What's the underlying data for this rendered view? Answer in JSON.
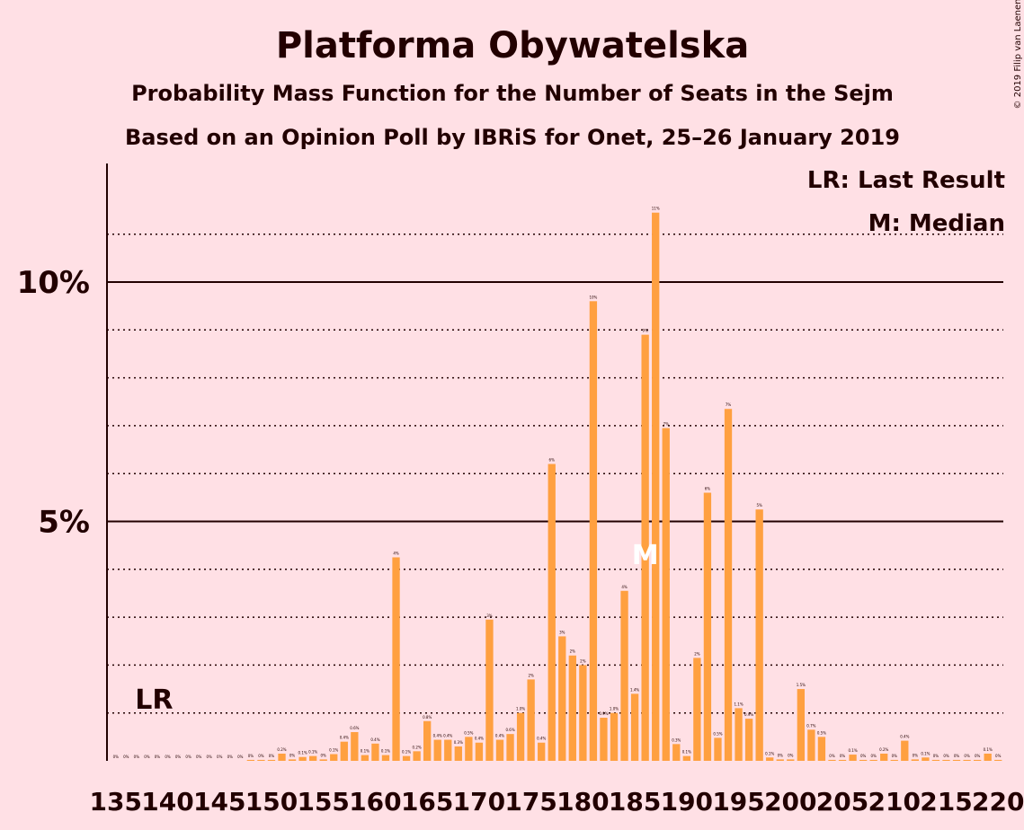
{
  "chart_data": {
    "type": "bar",
    "title": "Platforma Obywatelska",
    "subtitle": "Probability Mass Function for the Number of Seats in the Sejm",
    "subtitle2": "Based on an Opinion Poll by IBRiS for Onet, 25–26 January 2019",
    "copyright": "© 2019 Filip van Laenen",
    "legend": {
      "lr": "LR: Last Result",
      "median": "M: Median",
      "placement": "top-right"
    },
    "markers": {
      "last_result_label": "LR",
      "last_result_seat": 138,
      "median_label": "M",
      "median_seat": 186
    },
    "xlim": [
      135,
      220
    ],
    "x_tick_values": [
      135,
      140,
      145,
      150,
      155,
      160,
      165,
      170,
      175,
      180,
      185,
      190,
      195,
      200,
      205,
      210,
      215,
      220
    ],
    "x_tick_labels": [
      "135",
      "140",
      "145",
      "150",
      "155",
      "160",
      "165",
      "170",
      "175",
      "180",
      "185",
      "190",
      "195",
      "200",
      "205",
      "210",
      "215",
      "220"
    ],
    "ylim": [
      0,
      12.5
    ],
    "y_major_ticks": [
      5,
      10
    ],
    "y_tick_labels": [
      "5%",
      "10%"
    ],
    "y_dotted_gridlines": [
      1,
      2,
      3,
      4,
      6,
      7,
      8,
      9,
      11
    ],
    "grid": "major solid, minor dotted",
    "bar_color": "#FFA040",
    "x": [
      135,
      136,
      137,
      138,
      139,
      140,
      141,
      142,
      143,
      144,
      145,
      146,
      147,
      148,
      149,
      150,
      151,
      152,
      153,
      154,
      155,
      156,
      157,
      158,
      159,
      160,
      161,
      162,
      163,
      164,
      165,
      166,
      167,
      168,
      169,
      170,
      171,
      172,
      173,
      174,
      175,
      176,
      177,
      178,
      179,
      180,
      181,
      182,
      183,
      184,
      185,
      186,
      187,
      188,
      189,
      190,
      191,
      192,
      193,
      194,
      195,
      196,
      197,
      198,
      199,
      200,
      201,
      202,
      203,
      204,
      205,
      206,
      207,
      208,
      209,
      210,
      211,
      212,
      213,
      214,
      215,
      216,
      217,
      218,
      219,
      220
    ],
    "values": [
      0,
      0,
      0,
      0,
      0,
      0,
      0,
      0,
      0,
      0,
      0,
      0,
      0,
      0.02,
      0.02,
      0.02,
      0.15,
      0.03,
      0.08,
      0.1,
      0.03,
      0.14,
      0.4,
      0.6,
      0.12,
      0.36,
      0.12,
      4.25,
      0.1,
      0.2,
      0.83,
      0.44,
      0.44,
      0.3,
      0.5,
      0.38,
      2.95,
      0.44,
      0.56,
      1.0,
      1.7,
      0.38,
      6.2,
      2.6,
      2.2,
      2.0,
      9.6,
      0.9,
      1.0,
      3.55,
      1.4,
      8.9,
      11.45,
      6.95,
      0.35,
      0.1,
      2.15,
      5.6,
      0.48,
      7.35,
      1.1,
      0.88,
      5.25,
      0.07,
      0.03,
      0.03,
      1.5,
      0.65,
      0.5,
      0.02,
      0.02,
      0.13,
      0.02,
      0.02,
      0.15,
      0.02,
      0.42,
      0.03,
      0.07,
      0.02,
      0.02,
      0.02,
      0.02,
      0.02,
      0.15,
      0.02
    ],
    "value_labels": [
      "0%",
      "0%",
      "0%",
      "0%",
      "0%",
      "0%",
      "0%",
      "0%",
      "0%",
      "0%",
      "0%",
      "0%",
      "0%",
      "0%",
      "0%",
      "0%",
      "0.2%",
      "0%",
      "0.1%",
      "0.1%",
      "0%",
      "0.1%",
      "0.4%",
      "0.6%",
      "0.1%",
      "0.4%",
      "0.1%",
      "4%",
      "0.1%",
      "0.2%",
      "0.8%",
      "0.4%",
      "0.4%",
      "0.3%",
      "0.5%",
      "0.4%",
      "3%",
      "0.4%",
      "0.6%",
      "1.0%",
      "2%",
      "0.4%",
      "6%",
      "3%",
      "2%",
      "2%",
      "10%",
      "0.9%",
      "1.0%",
      "4%",
      "1.4%",
      "9%",
      "11%",
      "7%",
      "0.3%",
      "0.1%",
      "2%",
      "6%",
      "0.5%",
      "7%",
      "1.1%",
      "0.9%",
      "5%",
      "0.1%",
      "0%",
      "0%",
      "1.5%",
      "0.7%",
      "0.5%",
      "0%",
      "0%",
      "0.1%",
      "0%",
      "0%",
      "0.2%",
      "0%",
      "0.4%",
      "0%",
      "0.1%",
      "0%",
      "0%",
      "0%",
      "0%",
      "0%",
      "0.1%",
      "0%"
    ]
  }
}
